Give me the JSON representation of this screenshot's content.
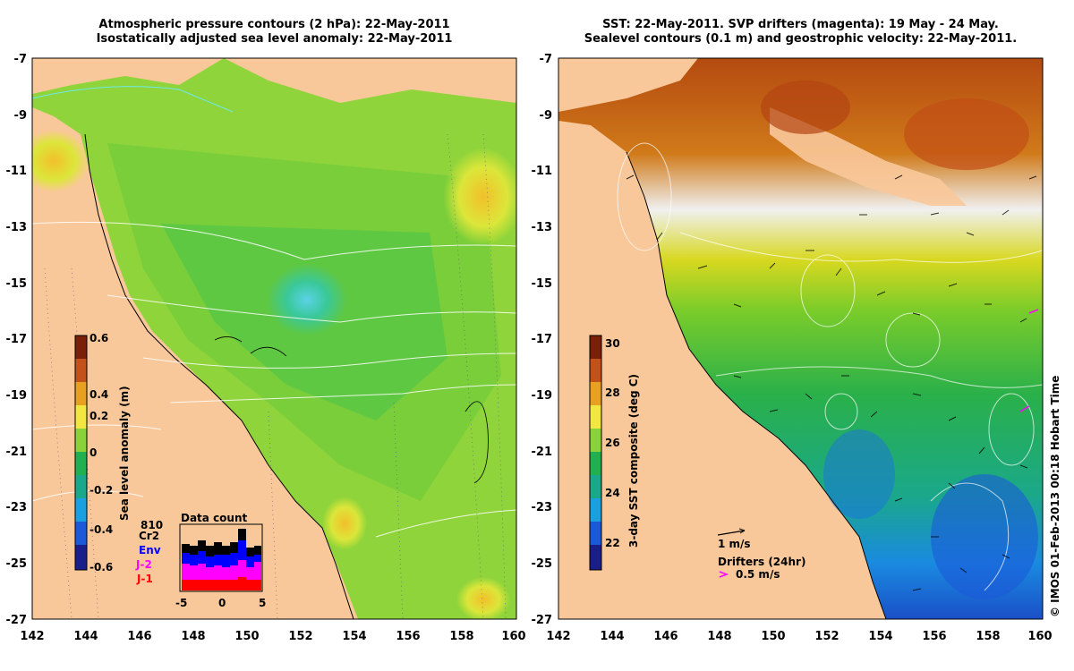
{
  "left_panel": {
    "title_line1": "Atmospheric pressure contours (2 hPa): 22-May-2011",
    "title_line2": "Isostatically adjusted sea level anomaly: 22-May-2011",
    "colorbar": {
      "label": "Sea level anomaly (m)",
      "ticks": [
        "0.6",
        "0.4",
        "0.2",
        "0",
        "-0.2",
        "-0.4",
        "-0.6"
      ],
      "colors": [
        "#7a1f08",
        "#c2521a",
        "#e8a020",
        "#f2e640",
        "#8ad23a",
        "#20b050",
        "#1aa88a",
        "#1aa0e0",
        "#1a5ad8",
        "#1a1e8a"
      ]
    },
    "data_count": {
      "title": "Data count",
      "sources": [
        "810",
        "Cr2",
        "Env",
        "J-2",
        "J-1"
      ],
      "source_colors": [
        "#000000",
        "#000000",
        "#0000ff",
        "#ff00ff",
        "#ff0000"
      ],
      "xticks": [
        "-5",
        "0",
        "5"
      ]
    }
  },
  "right_panel": {
    "title_line1": "SST: 22-May-2011. SVP drifters (magenta): 19 May - 24 May.",
    "title_line2": "Sealevel contours (0.1 m) and geostrophic velocity: 22-May-2011.",
    "colorbar": {
      "label": "3-day SST composite (deg C)",
      "ticks": [
        "30",
        "28",
        "26",
        "24",
        "22"
      ],
      "colors": [
        "#7a1f08",
        "#c2521a",
        "#e8a020",
        "#f2e640",
        "#8ad23a",
        "#20b050",
        "#1aa88a",
        "#1aa0e0",
        "#1a5ad8",
        "#1a1e8a"
      ]
    },
    "velocity_legend": "1 m/s",
    "drifters_legend": "Drifters (24hr)",
    "drifters_speed": "0.5 m/s"
  },
  "axes": {
    "lat_ticks": [
      "-7",
      "-9",
      "-11",
      "-13",
      "-15",
      "-17",
      "-19",
      "-21",
      "-23",
      "-25",
      "-27"
    ],
    "lon_ticks": [
      "142",
      "144",
      "146",
      "148",
      "150",
      "152",
      "154",
      "156",
      "158",
      "160"
    ]
  },
  "copyright": "© IMOS 01-Feb-2013 00:18 Hobart Time"
}
